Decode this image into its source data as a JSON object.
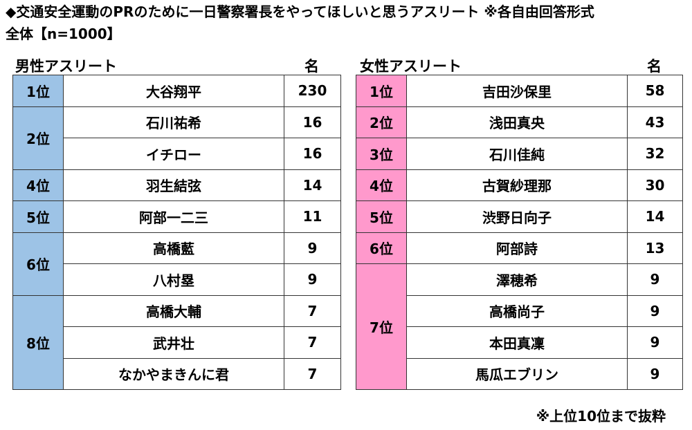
{
  "title_line1": "◆交通安全運動のPRのために一日警察署長をやってほしいと思うアスリート ※各自由回答形式",
  "title_line2": "全体【n=1000】",
  "male": {
    "label": "男性アスリート",
    "unit": "名",
    "groups": [
      {
        "rank": "1位",
        "rows": [
          {
            "name": "大谷翔平",
            "count": "230"
          }
        ]
      },
      {
        "rank": "2位",
        "rows": [
          {
            "name": "石川祐希",
            "count": "16"
          },
          {
            "name": "イチロー",
            "count": "16"
          }
        ]
      },
      {
        "rank": "4位",
        "rows": [
          {
            "name": "羽生結弦",
            "count": "14"
          }
        ]
      },
      {
        "rank": "5位",
        "rows": [
          {
            "name": "阿部一二三",
            "count": "11"
          }
        ]
      },
      {
        "rank": "6位",
        "rows": [
          {
            "name": "高橋藍",
            "count": "9"
          },
          {
            "name": "八村塁",
            "count": "9"
          }
        ]
      },
      {
        "rank": "8位",
        "rows": [
          {
            "name": "高橋大輔",
            "count": "7"
          },
          {
            "name": "武井壮",
            "count": "7"
          },
          {
            "name": "なかやまきんに君",
            "count": "7"
          }
        ]
      }
    ]
  },
  "female": {
    "label": "女性アスリート",
    "unit": "名",
    "groups": [
      {
        "rank": "1位",
        "rows": [
          {
            "name": "吉田沙保里",
            "count": "58"
          }
        ]
      },
      {
        "rank": "2位",
        "rows": [
          {
            "name": "浅田真央",
            "count": "43"
          }
        ]
      },
      {
        "rank": "3位",
        "rows": [
          {
            "name": "石川佳純",
            "count": "32"
          }
        ]
      },
      {
        "rank": "4位",
        "rows": [
          {
            "name": "古賀紗理那",
            "count": "30"
          }
        ]
      },
      {
        "rank": "5位",
        "rows": [
          {
            "name": "渋野日向子",
            "count": "14"
          }
        ]
      },
      {
        "rank": "6位",
        "rows": [
          {
            "name": "阿部詩",
            "count": "13"
          }
        ]
      },
      {
        "rank": "7位",
        "rows": [
          {
            "name": "澤穂希",
            "count": "9"
          },
          {
            "name": "高橋尚子",
            "count": "9"
          },
          {
            "name": "本田真凜",
            "count": "9"
          },
          {
            "name": "馬瓜エブリン",
            "count": "9"
          }
        ]
      }
    ]
  },
  "footnote": "※上位10位まで抜粋"
}
